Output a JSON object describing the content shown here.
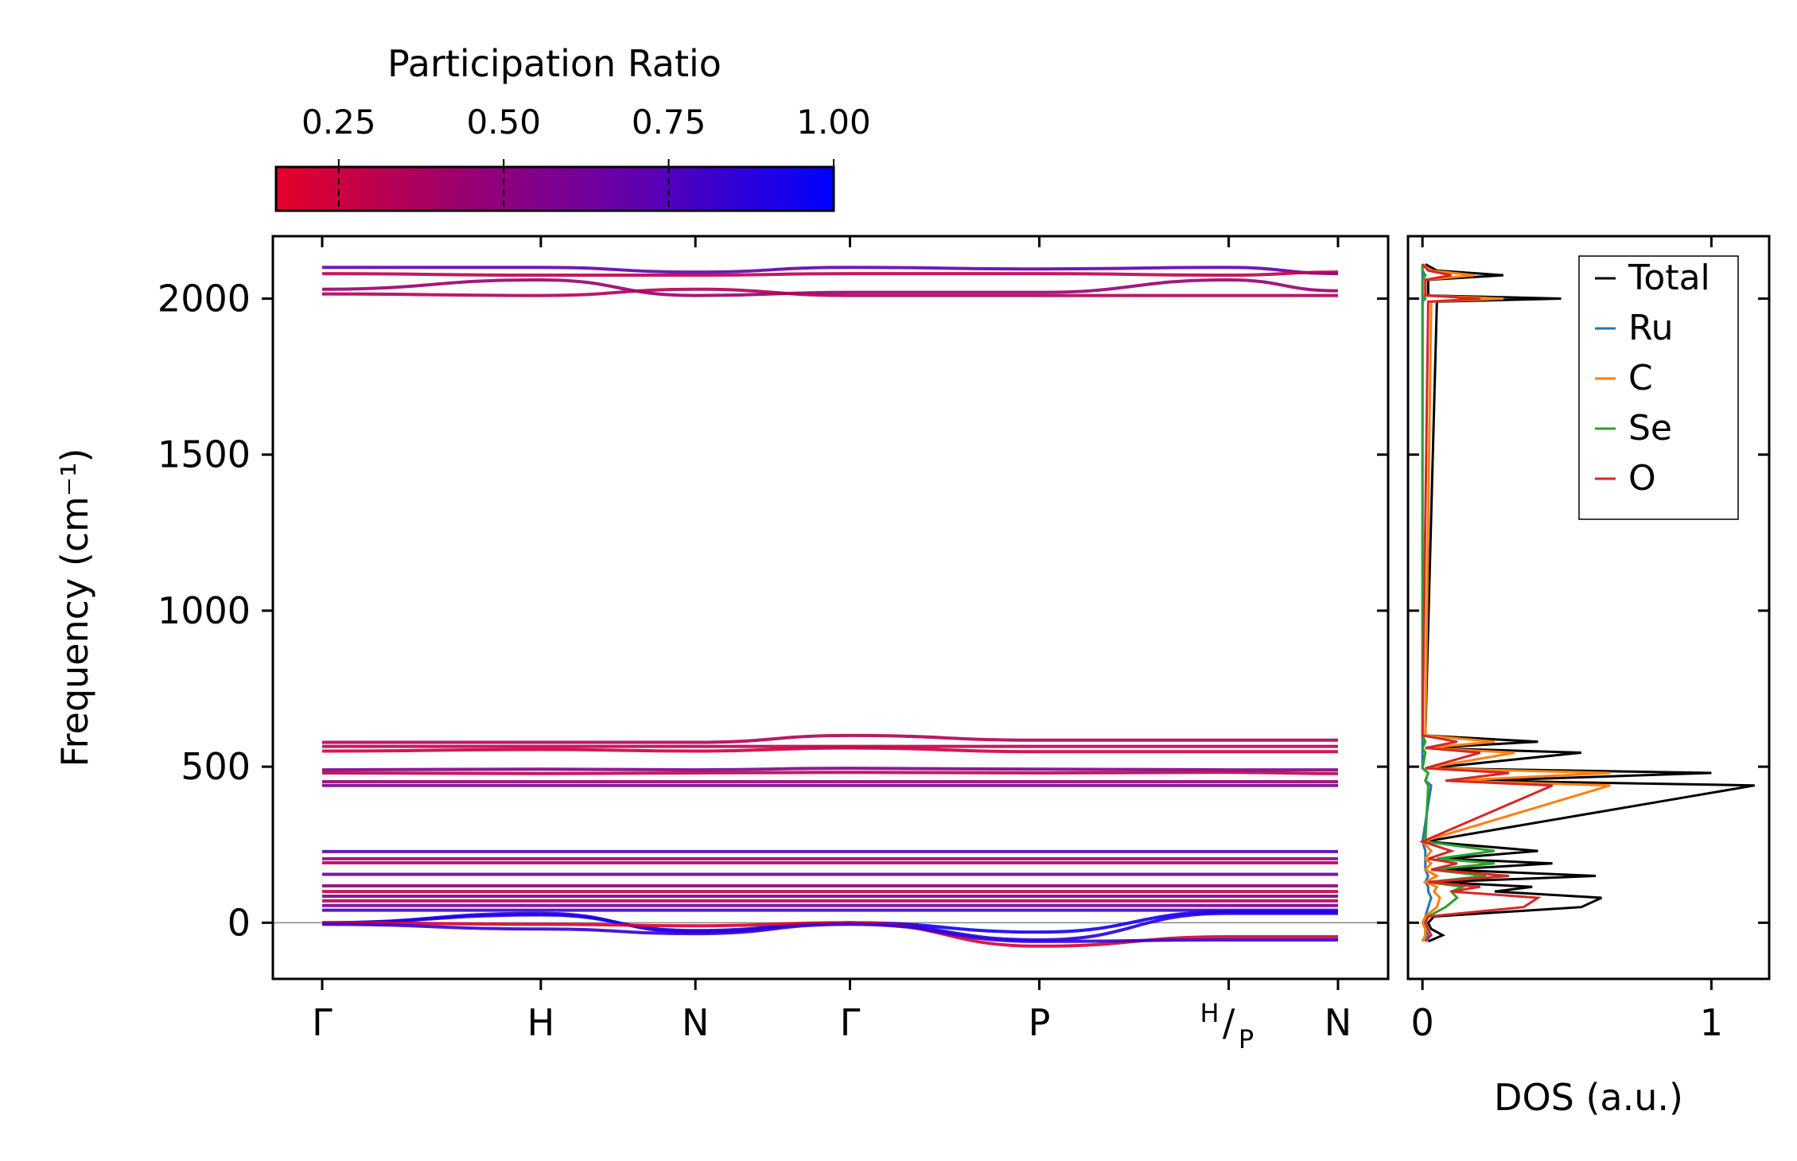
{
  "chart_data": [
    {
      "type": "line",
      "name": "phonon-band-structure",
      "ylabel": "Frequency (cm⁻¹)",
      "ylim": [
        -180,
        2200
      ],
      "yticks": [
        0,
        500,
        1000,
        1500,
        2000
      ],
      "ytick_labels": [
        "0",
        "500",
        "1000",
        "1500",
        "2000"
      ],
      "path_points": [
        {
          "label": "Γ",
          "pos": 0
        },
        {
          "label": "H",
          "pos": 1.0
        },
        {
          "label": "N",
          "pos": 1.707
        },
        {
          "label": "Γ",
          "pos": 2.414
        },
        {
          "label": "P",
          "pos": 3.28
        },
        {
          "label_top": "H",
          "label_bottom": "P",
          "pos": 4.146
        },
        {
          "label": "N",
          "pos": 4.646
        }
      ],
      "zero_line": true,
      "colorbar": {
        "label": "Participation Ratio",
        "range": [
          0.155,
          1.0
        ],
        "ticks": [
          0.25,
          0.5,
          0.75,
          1.0
        ],
        "tick_labels": [
          "0.25",
          "0.50",
          "0.75",
          "1.00"
        ],
        "cmap": [
          "#e60028",
          "#9a006e",
          "#5f00b0",
          "#0000ff"
        ]
      },
      "series": [
        {
          "freqs": [
            2100,
            2100,
            2085,
            2100,
            2095,
            2100,
            2080
          ],
          "pr": 0.7
        },
        {
          "freqs": [
            2080,
            2075,
            2075,
            2080,
            2080,
            2075,
            2085
          ],
          "pr": 0.3
        },
        {
          "freqs": [
            2030,
            2060,
            2010,
            2020,
            2020,
            2060,
            2025
          ],
          "pr": 0.45
        },
        {
          "freqs": [
            2015,
            2010,
            2030,
            2010,
            2010,
            2010,
            2010
          ],
          "pr": 0.35
        },
        {
          "freqs": [
            578,
            578,
            578,
            600,
            585,
            585,
            585
          ],
          "pr": 0.35
        },
        {
          "freqs": [
            565,
            565,
            565,
            565,
            565,
            565,
            565
          ],
          "pr": 0.3
        },
        {
          "freqs": [
            550,
            555,
            550,
            560,
            548,
            548,
            548
          ],
          "pr": 0.25
        },
        {
          "freqs": [
            490,
            492,
            490,
            495,
            492,
            490,
            490
          ],
          "pr": 0.55
        },
        {
          "freqs": [
            480,
            478,
            480,
            482,
            480,
            482,
            478
          ],
          "pr": 0.3
        },
        {
          "freqs": [
            452,
            452,
            452,
            452,
            452,
            452,
            452
          ],
          "pr": 0.45
        },
        {
          "freqs": [
            440,
            440,
            440,
            440,
            440,
            440,
            440
          ],
          "pr": 0.6
        },
        {
          "freqs": [
            228,
            228,
            228,
            228,
            228,
            228,
            228
          ],
          "pr": 0.75
        },
        {
          "freqs": [
            205,
            205,
            205,
            205,
            205,
            205,
            205
          ],
          "pr": 0.45
        },
        {
          "freqs": [
            192,
            192,
            192,
            192,
            192,
            192,
            192
          ],
          "pr": 0.35
        },
        {
          "freqs": [
            155,
            155,
            155,
            155,
            155,
            155,
            155
          ],
          "pr": 0.7
        },
        {
          "freqs": [
            118,
            118,
            118,
            118,
            118,
            118,
            118
          ],
          "pr": 0.5
        },
        {
          "freqs": [
            100,
            100,
            100,
            100,
            100,
            100,
            100
          ],
          "pr": 0.3
        },
        {
          "freqs": [
            85,
            85,
            85,
            85,
            85,
            85,
            85
          ],
          "pr": 0.55
        },
        {
          "freqs": [
            70,
            70,
            70,
            70,
            70,
            70,
            70
          ],
          "pr": 0.35
        },
        {
          "freqs": [
            55,
            55,
            55,
            55,
            55,
            55,
            55
          ],
          "pr": 0.6
        },
        {
          "freqs": [
            40,
            40,
            40,
            40,
            40,
            40,
            40
          ],
          "pr": 0.8
        },
        {
          "freqs": [
            0,
            25,
            -25,
            0,
            -30,
            35,
            35
          ],
          "pr": 0.95
        },
        {
          "freqs": [
            0,
            30,
            -30,
            0,
            -55,
            30,
            30
          ],
          "pr": 0.9
        },
        {
          "freqs": [
            0,
            -5,
            -10,
            0,
            -75,
            -45,
            -45
          ],
          "pr": 0.2
        },
        {
          "freqs": [
            -5,
            -20,
            -35,
            -5,
            -60,
            -55,
            -55
          ],
          "pr": 0.85
        }
      ]
    },
    {
      "type": "line",
      "name": "phonon-dos",
      "xlabel": "DOS (a.u.)",
      "xlim": [
        -0.05,
        1.2
      ],
      "xticks": [
        0,
        1
      ],
      "xtick_labels": [
        "0",
        "1"
      ],
      "ylim": [
        -180,
        2200
      ],
      "legend_position": "top-right",
      "y": [
        -60,
        -40,
        -20,
        0,
        20,
        50,
        80,
        100,
        115,
        130,
        150,
        170,
        190,
        205,
        230,
        260,
        440,
        455,
        480,
        495,
        545,
        560,
        580,
        600,
        1990,
        2000,
        2010,
        2060,
        2075,
        2090,
        2110
      ],
      "series": [
        {
          "name": "Total",
          "color": "#000000",
          "values": [
            0.02,
            0.07,
            0.03,
            0.02,
            0.04,
            0.55,
            0.62,
            0.25,
            0.38,
            0.05,
            0.6,
            0.08,
            0.45,
            0.08,
            0.4,
            0.01,
            1.15,
            0.2,
            1.0,
            0.02,
            0.55,
            0.01,
            0.4,
            0.01,
            0.05,
            0.48,
            0.02,
            0.02,
            0.28,
            0.05,
            0.01
          ]
        },
        {
          "name": "Ru",
          "color": "#1f77b4",
          "values": [
            0.01,
            0.02,
            0.01,
            0.01,
            0.01,
            0.02,
            0.03,
            0.02,
            0.02,
            0.01,
            0.02,
            0.01,
            0.01,
            0.01,
            0.01,
            0.0,
            0.03,
            0.01,
            0.02,
            0.0,
            0.0,
            0.0,
            0.0,
            0.0,
            0.0,
            0.0,
            0.0,
            0.0,
            0.0,
            0.0,
            0.0
          ]
        },
        {
          "name": "C",
          "color": "#ff7f0e",
          "values": [
            0.0,
            0.01,
            0.01,
            0.0,
            0.01,
            0.05,
            0.06,
            0.04,
            0.05,
            0.01,
            0.05,
            0.01,
            0.03,
            0.01,
            0.03,
            0.0,
            0.65,
            0.1,
            0.65,
            0.01,
            0.32,
            0.01,
            0.25,
            0.01,
            0.03,
            0.28,
            0.01,
            0.01,
            0.18,
            0.03,
            0.0
          ]
        },
        {
          "name": "Se",
          "color": "#2ca02c",
          "values": [
            0.0,
            0.01,
            0.01,
            0.01,
            0.02,
            0.08,
            0.12,
            0.1,
            0.14,
            0.02,
            0.22,
            0.03,
            0.25,
            0.05,
            0.25,
            0.01,
            0.02,
            0.01,
            0.02,
            0.0,
            0.01,
            0.0,
            0.01,
            0.0,
            0.0,
            0.01,
            0.0,
            0.0,
            0.01,
            0.0,
            0.0
          ]
        },
        {
          "name": "O",
          "color": "#d62728",
          "values": [
            0.01,
            0.03,
            0.02,
            0.01,
            0.02,
            0.35,
            0.4,
            0.1,
            0.2,
            0.02,
            0.3,
            0.03,
            0.12,
            0.02,
            0.1,
            0.0,
            0.45,
            0.08,
            0.3,
            0.01,
            0.2,
            0.01,
            0.12,
            0.0,
            0.02,
            0.2,
            0.01,
            0.01,
            0.1,
            0.02,
            0.0
          ]
        }
      ]
    }
  ]
}
